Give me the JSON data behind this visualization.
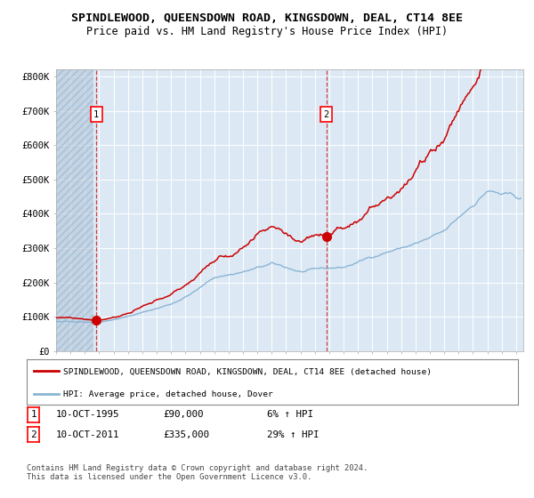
{
  "title": "SPINDLEWOOD, QUEENSDOWN ROAD, KINGSDOWN, DEAL, CT14 8EE",
  "subtitle": "Price paid vs. HM Land Registry's House Price Index (HPI)",
  "legend_red": "SPINDLEWOOD, QUEENSDOWN ROAD, KINGSDOWN, DEAL, CT14 8EE (detached house)",
  "legend_blue": "HPI: Average price, detached house, Dover",
  "transaction1_date": "10-OCT-1995",
  "transaction1_price": "£90,000",
  "transaction1_hpi": "6% ↑ HPI",
  "transaction2_date": "10-OCT-2011",
  "transaction2_price": "£335,000",
  "transaction2_hpi": "29% ↑ HPI",
  "footer": "Contains HM Land Registry data © Crown copyright and database right 2024.\nThis data is licensed under the Open Government Licence v3.0.",
  "yticks": [
    0,
    100000,
    200000,
    300000,
    400000,
    500000,
    600000,
    700000,
    800000
  ],
  "ytick_labels": [
    "£0",
    "£100K",
    "£200K",
    "£300K",
    "£400K",
    "£500K",
    "£600K",
    "£700K",
    "£800K"
  ],
  "background_color": "#dce9f5",
  "hatch_color": "#b0c4d8",
  "red_color": "#cc0000",
  "blue_color": "#8ab4d4",
  "vline1_x": 1995.79,
  "vline2_x": 2011.79,
  "marker1_x": 1995.79,
  "marker1_y": 90000,
  "marker2_x": 2011.79,
  "marker2_y": 335000,
  "xmin": 1993.0,
  "xmax": 2025.5,
  "ymax": 820000,
  "xticks": [
    1993,
    1994,
    1995,
    1996,
    1997,
    1998,
    1999,
    2000,
    2001,
    2002,
    2003,
    2004,
    2005,
    2006,
    2007,
    2008,
    2009,
    2010,
    2011,
    2012,
    2013,
    2014,
    2015,
    2016,
    2017,
    2018,
    2019,
    2020,
    2021,
    2022,
    2023,
    2024,
    2025
  ]
}
